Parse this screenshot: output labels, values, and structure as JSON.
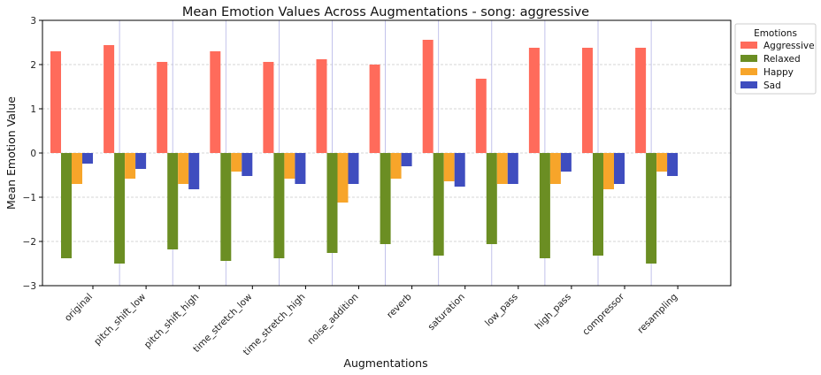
{
  "chart_data": {
    "type": "bar",
    "title": "Mean Emotion Values Across Augmentations - song: aggressive",
    "xlabel": "Augmentations",
    "ylabel": "Mean Emotion Value",
    "ylim": [
      -3,
      3
    ],
    "yticks": [
      "−3",
      "−2",
      "−1",
      "0",
      "1",
      "2",
      "3"
    ],
    "categories": [
      "original",
      "pitch_shift_low",
      "pitch_shift_high",
      "time_stretch_low",
      "time_stretch_high",
      "noise_addition",
      "reverb",
      "saturation",
      "low_pass",
      "high_pass",
      "compressor",
      "resampling"
    ],
    "series": [
      {
        "name": "Aggressive",
        "color": "#ff6b5b",
        "values": [
          2.3,
          2.44,
          2.06,
          2.3,
          2.06,
          2.12,
          2.0,
          2.56,
          1.68,
          2.38,
          2.38,
          2.38
        ]
      },
      {
        "name": "Relaxed",
        "color": "#6b8e23",
        "values": [
          -2.38,
          -2.5,
          -2.18,
          -2.44,
          -2.38,
          -2.26,
          -2.06,
          -2.32,
          -2.06,
          -2.38,
          -2.32,
          -2.5
        ]
      },
      {
        "name": "Happy",
        "color": "#f7a52a",
        "values": [
          -0.7,
          -0.58,
          -0.7,
          -0.42,
          -0.58,
          -1.12,
          -0.58,
          -0.64,
          -0.7,
          -0.7,
          -0.82,
          -0.42
        ]
      },
      {
        "name": "Sad",
        "color": "#3f4dbf",
        "values": [
          -0.24,
          -0.36,
          -0.82,
          -0.52,
          -0.7,
          -0.7,
          -0.3,
          -0.76,
          -0.7,
          -0.42,
          -0.7,
          -0.52
        ]
      }
    ],
    "legend": {
      "title": "Emotions",
      "placement": "outside upper-right"
    },
    "grid": {
      "horizontal": "dashed",
      "group_separators": true
    }
  }
}
